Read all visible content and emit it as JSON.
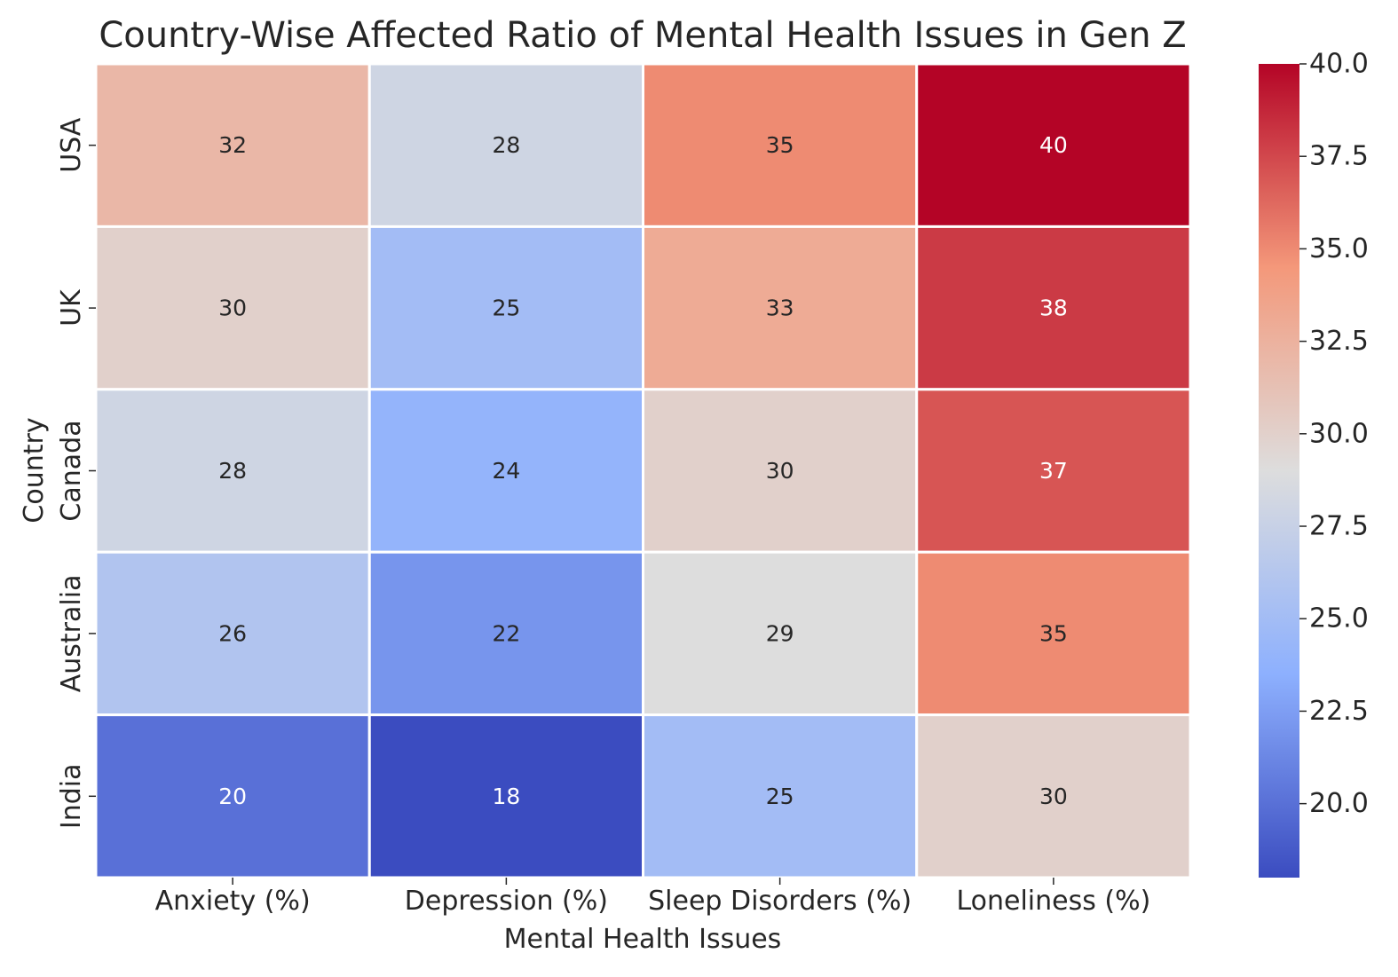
{
  "chart_data": {
    "type": "heatmap",
    "title": "Country-Wise Affected Ratio of Mental Health Issues in Gen Z",
    "xlabel": "Mental Health Issues",
    "ylabel": "Country",
    "columns": [
      "Anxiety (%)",
      "Depression (%)",
      "Sleep Disorders (%)",
      "Loneliness (%)"
    ],
    "rows": [
      "USA",
      "UK",
      "Canada",
      "Australia",
      "India"
    ],
    "values": [
      [
        32,
        28,
        35,
        40
      ],
      [
        30,
        25,
        33,
        38
      ],
      [
        28,
        24,
        30,
        37
      ],
      [
        26,
        22,
        29,
        35
      ],
      [
        20,
        18,
        25,
        30
      ]
    ],
    "colormap": "coolwarm",
    "vmin": 18,
    "vmax": 40,
    "colorbar": {
      "ticks": [
        20.0,
        22.5,
        25.0,
        27.5,
        30.0,
        32.5,
        35.0,
        37.5,
        40.0
      ],
      "tick_labels": [
        "20.0",
        "22.5",
        "25.0",
        "27.5",
        "30.0",
        "32.5",
        "35.0",
        "37.5",
        "40.0"
      ]
    }
  }
}
